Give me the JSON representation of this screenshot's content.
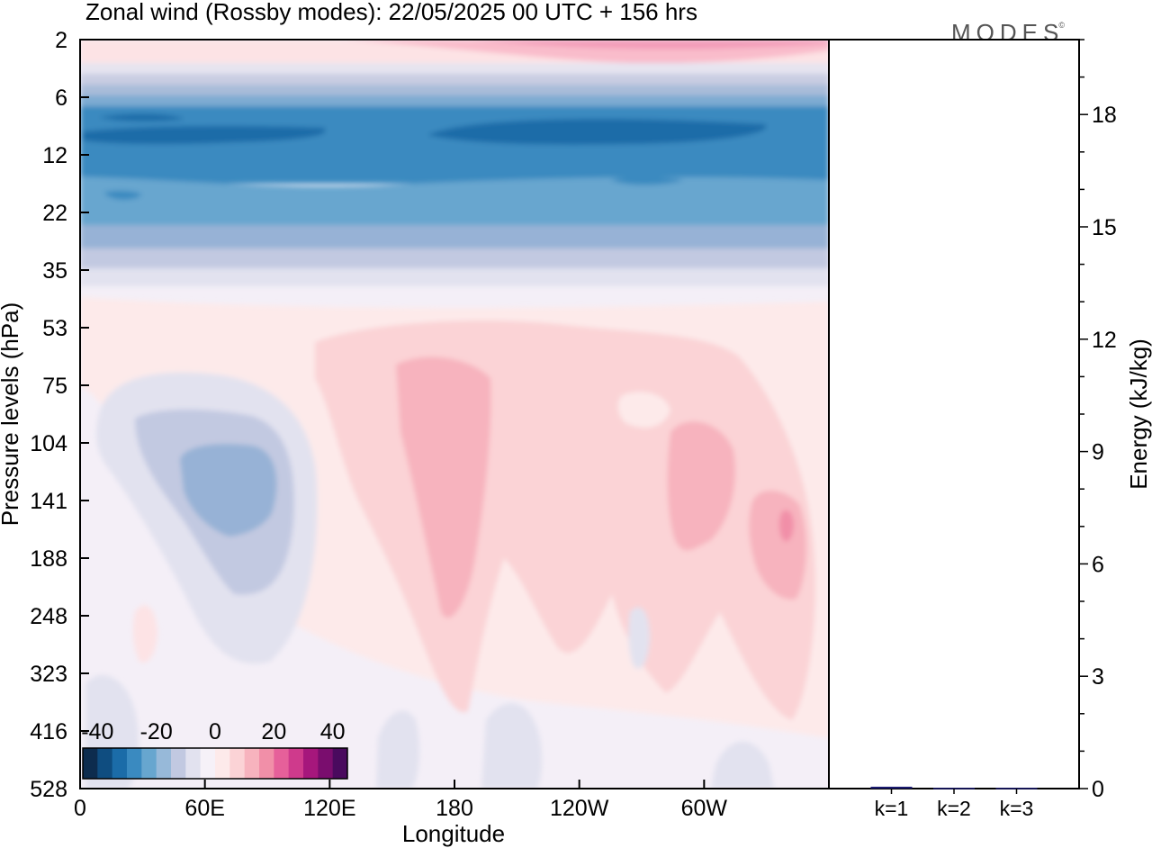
{
  "figure": {
    "title": "Zonal wind (Rossby modes):  22/05/2025  00 UTC  + 156 hrs",
    "logo": "MODES",
    "logo_mark": "©"
  },
  "chart_data": [
    {
      "type": "heatmap",
      "xlabel": "Longitude",
      "ylabel": "Pressure levels (hPa)",
      "x_ticks": [
        "0",
        "60E",
        "120E",
        "180",
        "120W",
        "60W"
      ],
      "x_tick_degrees": [
        0,
        60,
        120,
        180,
        240,
        300
      ],
      "xlim": [
        0,
        360
      ],
      "y_ticks": [
        "2",
        "6",
        "12",
        "22",
        "35",
        "53",
        "75",
        "104",
        "141",
        "188",
        "248",
        "323",
        "416",
        "528"
      ],
      "y_scale": "model levels (non-linear), pressure increasing downward",
      "colorbar": {
        "tick_labels": [
          "-40",
          "-20",
          "0",
          "20",
          "40"
        ],
        "range": [
          -45,
          45
        ],
        "step": 5,
        "colors": [
          "#0d2c4e",
          "#0f4d80",
          "#1b6ca8",
          "#3a8ac0",
          "#67a6cf",
          "#97b9d9",
          "#c2c9e1",
          "#e2e2ef",
          "#f6f1f8",
          "#fdeaea",
          "#fbd3d6",
          "#f7b3be",
          "#f18fa8",
          "#e6609a",
          "#cf3a8c",
          "#a6177c",
          "#7a0d6e",
          "#4a0a5e"
        ]
      },
      "fields": [
        {
          "label": "negative easterly layer near 6-22 hPa",
          "min_value": -30
        },
        {
          "label": "westerly cap near 2 hPa",
          "max_value": 15
        },
        {
          "label": "easterly core 60E-80E near 104-188 hPa",
          "min_value": -15
        },
        {
          "label": "westerly maxima 160E-300E near 75-248 hPa",
          "max_value": 15
        }
      ]
    },
    {
      "type": "bar",
      "categories": [
        "k=1",
        "k=2",
        "k=3"
      ],
      "values": [
        0.05,
        0.02,
        0.02
      ],
      "ylabel": "Energy (kJ/kg)",
      "ylim": [
        0,
        20
      ],
      "y_ticks": [
        "0",
        "3",
        "6",
        "9",
        "12",
        "15",
        "18"
      ],
      "colors": [
        "#1a1a6e",
        "#1a1a6e",
        "#1a1a6e"
      ]
    }
  ]
}
